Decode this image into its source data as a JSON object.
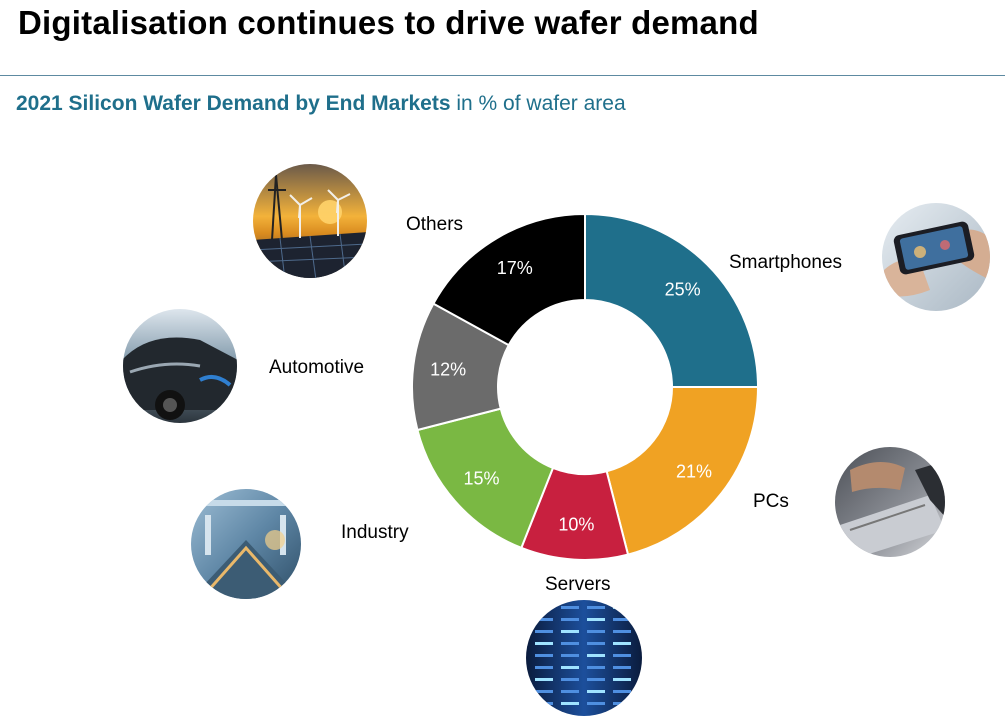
{
  "title": "Digitalisation continues to drive wafer demand",
  "subtitle_bold": "2021 Silicon Wafer Demand by End Markets",
  "subtitle_rest": " in % of wafer area",
  "chart_data": {
    "type": "pie",
    "style": "donut",
    "legend": "none",
    "slices": [
      {
        "name": "Smartphones",
        "value": 25,
        "label": "25%",
        "color": "#1f6f8b",
        "icon": "smartphone-photo-icon"
      },
      {
        "name": "PCs",
        "value": 21,
        "label": "21%",
        "color": "#f0a223",
        "icon": "laptop-photo-icon"
      },
      {
        "name": "Servers",
        "value": 10,
        "label": "10%",
        "color": "#c8203f",
        "icon": "server-rack-photo-icon"
      },
      {
        "name": "Industry",
        "value": 15,
        "label": "15%",
        "color": "#7ab843",
        "icon": "factory-photo-icon"
      },
      {
        "name": "Automotive",
        "value": 12,
        "label": "12%",
        "color": "#6b6b6b",
        "icon": "electric-car-photo-icon"
      },
      {
        "name": "Others",
        "value": 17,
        "label": "17%",
        "color": "#000000",
        "icon": "wind-solar-photo-icon"
      }
    ]
  }
}
